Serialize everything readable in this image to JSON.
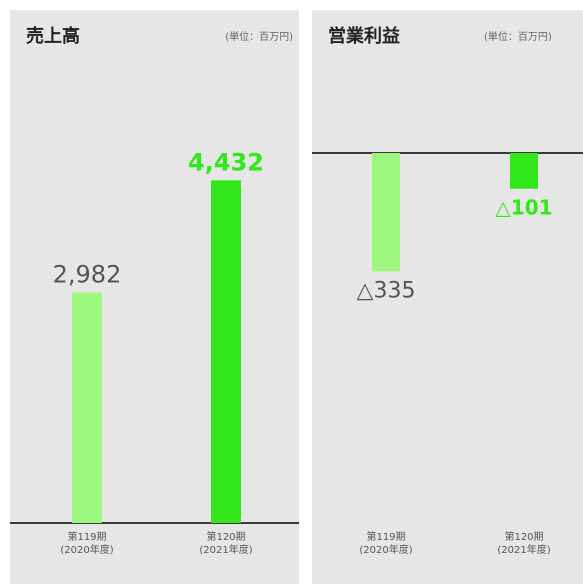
{
  "colors": {
    "series_prior": "#9ef77f",
    "series_current": "#33e81a",
    "baseline": "#3a3a3a",
    "label_prior": "#555555"
  },
  "chart_data": [
    {
      "type": "bar",
      "title": "売上高",
      "unit_label": "(単位：百万円)",
      "categories": [
        "第119期\n(2020年度)",
        "第120期\n(2021年度)"
      ],
      "values": [
        2982,
        4432
      ],
      "value_labels": [
        "2,982",
        "4,432"
      ],
      "ylim": [
        0,
        5600
      ]
    },
    {
      "type": "bar",
      "title": "営業利益",
      "unit_label": "(単位：百万円)",
      "categories": [
        "第119期\n(2020年度)",
        "第120期\n(2021年度)"
      ],
      "values": [
        -335,
        -101
      ],
      "value_labels": [
        "△335",
        "△101"
      ],
      "ylim": [
        -1180,
        0
      ]
    }
  ]
}
